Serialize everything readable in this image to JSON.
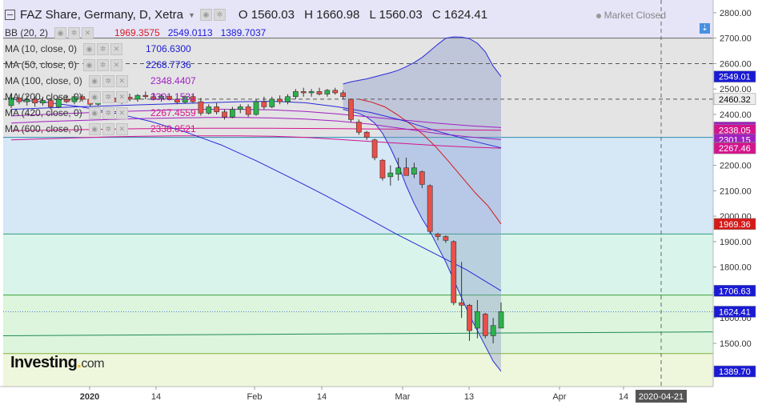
{
  "header": {
    "title": "FAZ Share, Germany, D, Xetra",
    "ohlc": {
      "o": "O 1560.03",
      "h": "H 1660.98",
      "l": "L 1560.03",
      "c": "C 1624.41"
    },
    "market_status": "Market Closed"
  },
  "indicators": [
    {
      "label": "BB (20, 2)",
      "values": [
        "1969.3575",
        "2549.0113",
        "1389.7037"
      ],
      "colors": [
        "#d41a1a",
        "#1a1ad4",
        "#1a1ad4"
      ]
    },
    {
      "label": "MA (10, close, 0)",
      "values": [
        "1706.6300"
      ],
      "colors": [
        "#1a1ad4"
      ]
    },
    {
      "label": "MA (50, close, 0)",
      "values": [
        "2268.7736"
      ],
      "colors": [
        "#1a1ad4"
      ]
    },
    {
      "label": "MA (100, close, 0)",
      "values": [
        "2348.4407"
      ],
      "colors": [
        "#a020c0"
      ]
    },
    {
      "label": "MA (200, close, 0)",
      "values": [
        "2301.1531"
      ],
      "colors": [
        "#a020c0"
      ]
    },
    {
      "label": "MA (420, close, 0)",
      "values": [
        "2267.4559"
      ],
      "colors": [
        "#d4148c"
      ]
    },
    {
      "label": "MA (600, close, 0)",
      "values": [
        "2338.0521"
      ],
      "colors": [
        "#d4148c"
      ]
    }
  ],
  "logo": {
    "text": "Investing",
    "suffix": "com"
  },
  "chart_data": {
    "type": "candlestick",
    "ylim": [
      1330,
      2850
    ],
    "y_ticks": [
      1500,
      1600,
      1700,
      1800,
      1900,
      2000,
      2100,
      2200,
      2300,
      2400,
      2500,
      2600,
      2700,
      2800
    ],
    "y_tick_labels": [
      "1500.00",
      "1600.00",
      "1700.00",
      "1800.00",
      "1900.00",
      "2000.00",
      "2100.00",
      "2200.00",
      "2300.00",
      "2400.00",
      "2500.00",
      "2600.00",
      "2700.00",
      "2800.00"
    ],
    "x_ticks": [
      "2020",
      "14",
      "Feb",
      "14",
      "Mar",
      "13",
      "Apr",
      "14"
    ],
    "cursor_date": "2020-04-21",
    "price_labels": [
      {
        "text": "2549.01",
        "value": 2549.01,
        "bg": "#1a1ad4",
        "fg": "#ffffff"
      },
      {
        "text": "2460.32",
        "value": 2460.32,
        "bg": "#eeeeee",
        "fg": "#000000"
      },
      {
        "text": "2348.44",
        "value": 2348.44,
        "bg": "#a020c0",
        "fg": "#ffffff"
      },
      {
        "text": "2338.05",
        "value": 2338.05,
        "bg": "#d4148c",
        "fg": "#ffffff"
      },
      {
        "text": "2301.15",
        "value": 2301.15,
        "bg": "#a020c0",
        "fg": "#ffffff"
      },
      {
        "text": "2268.77",
        "value": 2268.77,
        "bg": "#1a1ad4",
        "fg": "#ffffff"
      },
      {
        "text": "2267.46",
        "value": 2267.46,
        "bg": "#d4148c",
        "fg": "#ffffff"
      },
      {
        "text": "1969.36",
        "value": 1969.36,
        "bg": "#d41a1a",
        "fg": "#ffffff"
      },
      {
        "text": "1706.63",
        "value": 1706.63,
        "bg": "#1a1ad4",
        "fg": "#ffffff"
      },
      {
        "text": "1624.41",
        "value": 1624.41,
        "bg": "#1a1ad4",
        "fg": "#ffffff"
      },
      {
        "text": "1389.70",
        "value": 1389.7,
        "bg": "#1a1ad4",
        "fg": "#ffffff"
      }
    ],
    "zones": [
      {
        "from": 2700,
        "to": 2850,
        "color": "#e6e4f7"
      },
      {
        "from": 2310,
        "to": 2700,
        "color": "#e4e4e4"
      },
      {
        "from": 1930,
        "to": 2310,
        "color": "#d6e8f6"
      },
      {
        "from": 1690,
        "to": 1930,
        "color": "#d9f4ea"
      },
      {
        "from": 1460,
        "to": 1690,
        "color": "#dcf5dc"
      },
      {
        "from": 1330,
        "to": 1460,
        "color": "#eef6dc"
      }
    ],
    "zone_lines": [
      {
        "value": 2700,
        "color": "#666666"
      },
      {
        "value": 2310,
        "color": "#2e8bb0"
      },
      {
        "value": 1930,
        "color": "#2e9e7a"
      },
      {
        "value": 1690,
        "color": "#3aa03a"
      },
      {
        "value": 1460,
        "color": "#88b040"
      }
    ],
    "candles": [
      {
        "o": 2435,
        "h": 2480,
        "l": 2425,
        "c": 2465
      },
      {
        "o": 2465,
        "h": 2480,
        "l": 2440,
        "c": 2450
      },
      {
        "o": 2450,
        "h": 2475,
        "l": 2435,
        "c": 2460
      },
      {
        "o": 2460,
        "h": 2470,
        "l": 2430,
        "c": 2445
      },
      {
        "o": 2445,
        "h": 2470,
        "l": 2435,
        "c": 2455
      },
      {
        "o": 2455,
        "h": 2465,
        "l": 2420,
        "c": 2430
      },
      {
        "o": 2430,
        "h": 2470,
        "l": 2425,
        "c": 2460
      },
      {
        "o": 2460,
        "h": 2475,
        "l": 2445,
        "c": 2450
      },
      {
        "o": 2450,
        "h": 2480,
        "l": 2440,
        "c": 2470
      },
      {
        "o": 2470,
        "h": 2480,
        "l": 2450,
        "c": 2460
      },
      {
        "o": 2460,
        "h": 2470,
        "l": 2430,
        "c": 2440
      },
      {
        "o": 2440,
        "h": 2480,
        "l": 2435,
        "c": 2470
      },
      {
        "o": 2470,
        "h": 2485,
        "l": 2455,
        "c": 2465
      },
      {
        "o": 2465,
        "h": 2480,
        "l": 2445,
        "c": 2450
      },
      {
        "o": 2450,
        "h": 2478,
        "l": 2440,
        "c": 2468
      },
      {
        "o": 2468,
        "h": 2482,
        "l": 2452,
        "c": 2460
      },
      {
        "o": 2460,
        "h": 2480,
        "l": 2450,
        "c": 2475
      },
      {
        "o": 2475,
        "h": 2490,
        "l": 2460,
        "c": 2470
      },
      {
        "o": 2470,
        "h": 2485,
        "l": 2455,
        "c": 2462
      },
      {
        "o": 2462,
        "h": 2480,
        "l": 2450,
        "c": 2472
      },
      {
        "o": 2472,
        "h": 2482,
        "l": 2455,
        "c": 2460
      },
      {
        "o": 2460,
        "h": 2475,
        "l": 2440,
        "c": 2448
      },
      {
        "o": 2448,
        "h": 2475,
        "l": 2442,
        "c": 2470
      },
      {
        "o": 2470,
        "h": 2478,
        "l": 2445,
        "c": 2450
      },
      {
        "o": 2450,
        "h": 2465,
        "l": 2395,
        "c": 2405
      },
      {
        "o": 2405,
        "h": 2440,
        "l": 2400,
        "c": 2430
      },
      {
        "o": 2430,
        "h": 2445,
        "l": 2400,
        "c": 2410
      },
      {
        "o": 2410,
        "h": 2420,
        "l": 2380,
        "c": 2390
      },
      {
        "o": 2390,
        "h": 2430,
        "l": 2385,
        "c": 2420
      },
      {
        "o": 2420,
        "h": 2440,
        "l": 2405,
        "c": 2430
      },
      {
        "o": 2430,
        "h": 2440,
        "l": 2390,
        "c": 2400
      },
      {
        "o": 2400,
        "h": 2460,
        "l": 2395,
        "c": 2450
      },
      {
        "o": 2450,
        "h": 2470,
        "l": 2420,
        "c": 2430
      },
      {
        "o": 2430,
        "h": 2470,
        "l": 2425,
        "c": 2460
      },
      {
        "o": 2460,
        "h": 2475,
        "l": 2440,
        "c": 2450
      },
      {
        "o": 2450,
        "h": 2480,
        "l": 2440,
        "c": 2470
      },
      {
        "o": 2470,
        "h": 2500,
        "l": 2460,
        "c": 2490
      },
      {
        "o": 2490,
        "h": 2505,
        "l": 2470,
        "c": 2485
      },
      {
        "o": 2485,
        "h": 2500,
        "l": 2470,
        "c": 2490
      },
      {
        "o": 2490,
        "h": 2505,
        "l": 2475,
        "c": 2480
      },
      {
        "o": 2480,
        "h": 2500,
        "l": 2470,
        "c": 2495
      },
      {
        "o": 2495,
        "h": 2505,
        "l": 2478,
        "c": 2485
      },
      {
        "o": 2485,
        "h": 2495,
        "l": 2460,
        "c": 2470
      },
      {
        "o": 2460,
        "h": 2462,
        "l": 2370,
        "c": 2380
      },
      {
        "o": 2370,
        "h": 2380,
        "l": 2320,
        "c": 2330
      },
      {
        "o": 2330,
        "h": 2335,
        "l": 2300,
        "c": 2310
      },
      {
        "o": 2300,
        "h": 2305,
        "l": 2220,
        "c": 2230
      },
      {
        "o": 2220,
        "h": 2225,
        "l": 2140,
        "c": 2150
      },
      {
        "o": 2155,
        "h": 2200,
        "l": 2120,
        "c": 2170
      },
      {
        "o": 2165,
        "h": 2230,
        "l": 2140,
        "c": 2190
      },
      {
        "o": 2190,
        "h": 2230,
        "l": 2170,
        "c": 2160
      },
      {
        "o": 2165,
        "h": 2210,
        "l": 2150,
        "c": 2190
      },
      {
        "o": 2175,
        "h": 2180,
        "l": 2110,
        "c": 2125
      },
      {
        "o": 2120,
        "h": 2125,
        "l": 1930,
        "c": 1940
      },
      {
        "o": 1930,
        "h": 1935,
        "l": 1905,
        "c": 1920
      },
      {
        "o": 1920,
        "h": 1925,
        "l": 1895,
        "c": 1905
      },
      {
        "o": 1900,
        "h": 1905,
        "l": 1650,
        "c": 1660
      },
      {
        "o": 1660,
        "h": 1820,
        "l": 1600,
        "c": 1650
      },
      {
        "o": 1650,
        "h": 1655,
        "l": 1510,
        "c": 1550
      },
      {
        "o": 1560,
        "h": 1670,
        "l": 1520,
        "c": 1625
      },
      {
        "o": 1615,
        "h": 1620,
        "l": 1520,
        "c": 1530
      },
      {
        "o": 1530,
        "h": 1600,
        "l": 1500,
        "c": 1570
      },
      {
        "o": 1560.03,
        "h": 1660.98,
        "l": 1560.03,
        "c": 1624.41
      }
    ],
    "bb_upper": [
      2520,
      2528,
      2534,
      2540,
      2548,
      2556,
      2564,
      2574,
      2588,
      2604,
      2624,
      2650,
      2676,
      2700,
      2705,
      2704,
      2698,
      2680,
      2646,
      2590,
      2549.01
    ],
    "bb_lower": [
      2420,
      2412,
      2404,
      2390,
      2366,
      2326,
      2268,
      2200,
      2120,
      2050,
      1990,
      1940,
      1880,
      1820,
      1750,
      1680,
      1610,
      1550,
      1490,
      1430,
      1389.7
    ],
    "bb_mid": [
      2460,
      2448,
      2430,
      2398,
      2362,
      2320,
      2270,
      2212,
      2152,
      2092,
      2040,
      1969.36
    ],
    "ma10": [
      2460,
      2448,
      2430,
      2404,
      2372,
      2330,
      2280,
      2218,
      2150,
      2080,
      2006,
      1930,
      1860,
      1790,
      1706.63
    ],
    "ma50": [
      2420,
      2425,
      2430,
      2434,
      2438,
      2442,
      2446,
      2450,
      2452,
      2446,
      2430,
      2408,
      2376,
      2336,
      2300,
      2268.77
    ],
    "ma100": [
      2394,
      2400,
      2405,
      2410,
      2414,
      2418,
      2420,
      2420,
      2418,
      2412,
      2402,
      2390,
      2378,
      2366,
      2356,
      2348.44
    ],
    "ma200": [
      2366,
      2372,
      2376,
      2380,
      2384,
      2386,
      2388,
      2388,
      2386,
      2382,
      2374,
      2362,
      2344,
      2326,
      2312,
      2301.15
    ],
    "ma420": [
      2300,
      2304,
      2308,
      2312,
      2314,
      2316,
      2316,
      2316,
      2314,
      2310,
      2302,
      2294,
      2286,
      2278,
      2272,
      2267.46
    ],
    "ma600": [
      2336,
      2338,
      2340,
      2342,
      2344,
      2345,
      2346,
      2346,
      2346,
      2345,
      2344,
      2343,
      2342,
      2340,
      2339,
      2338.05
    ]
  }
}
